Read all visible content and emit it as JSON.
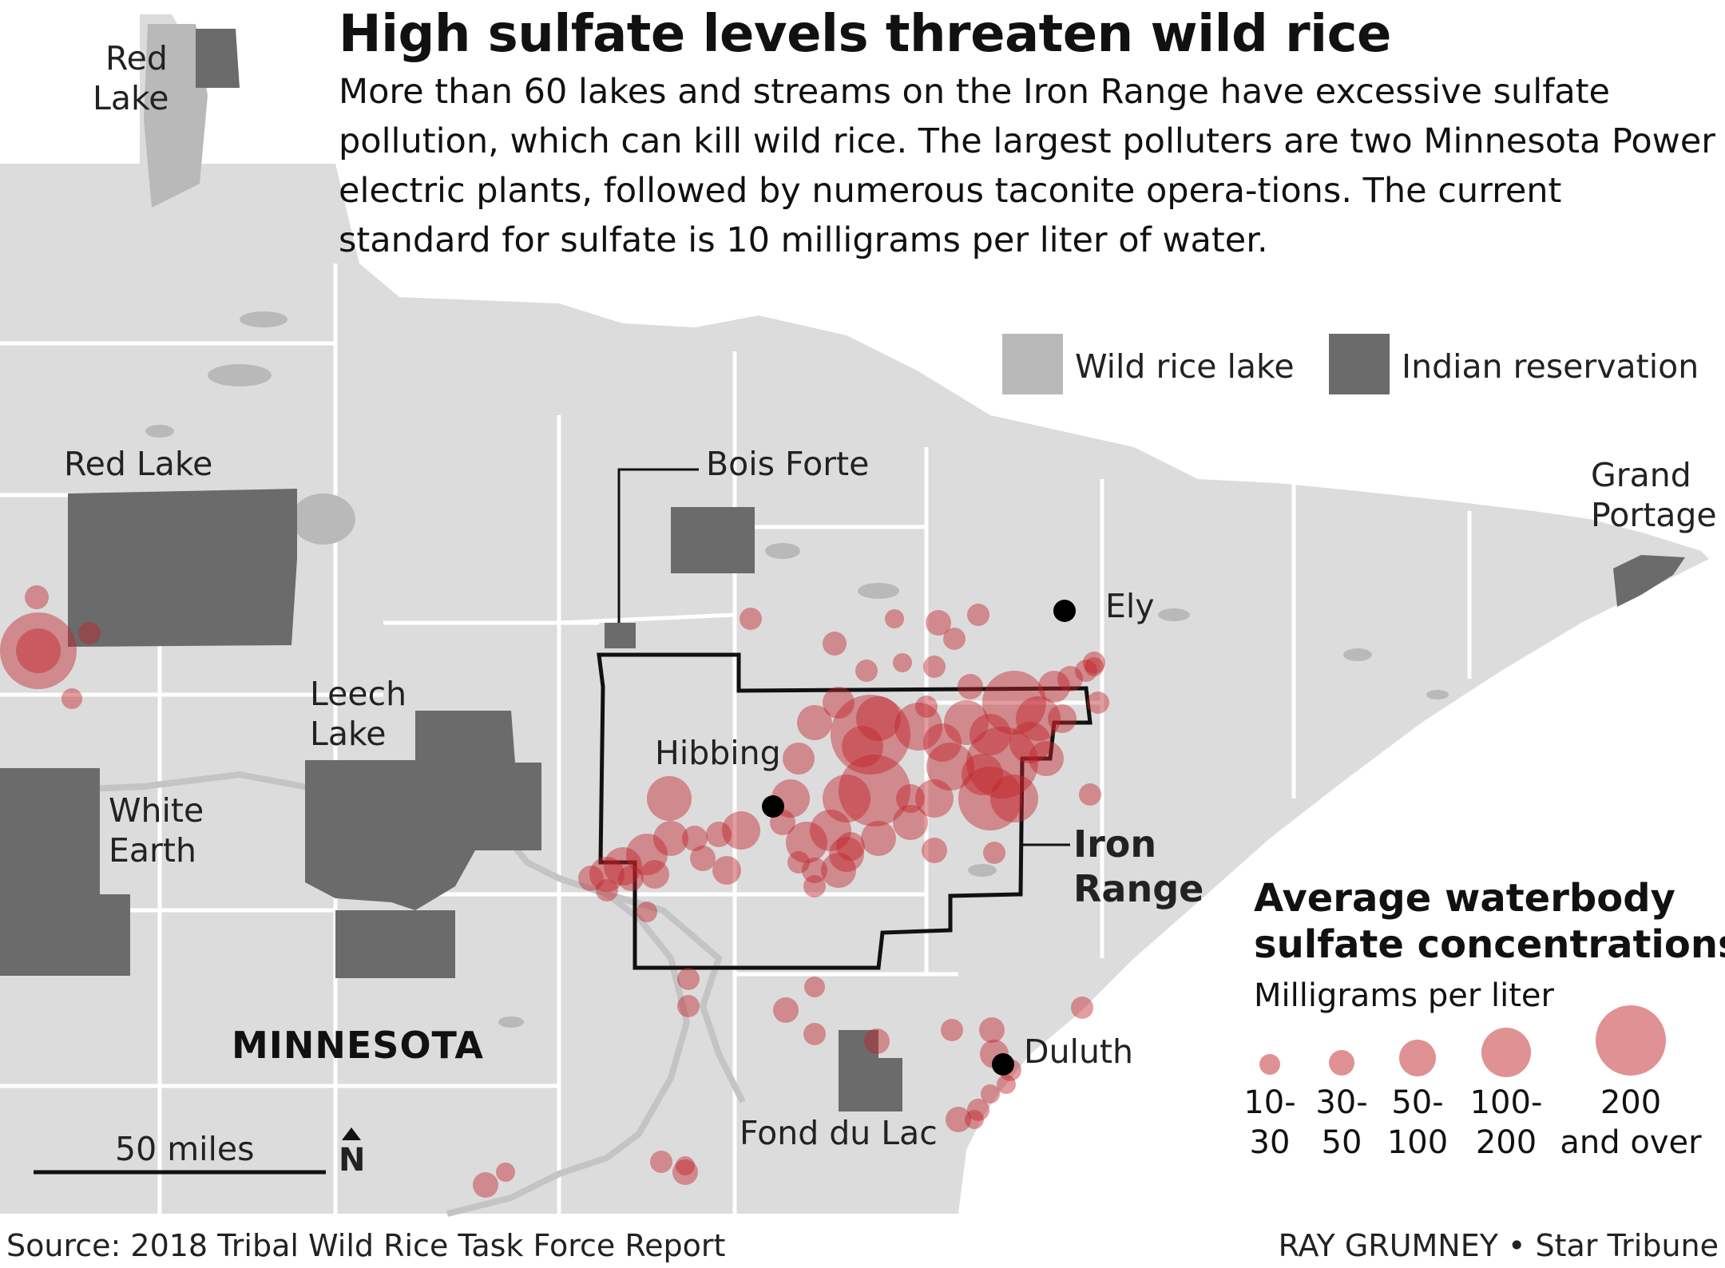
{
  "title": "High sulfate levels threaten wild rice",
  "subtitle": "More than 60 lakes and streams on the Iron Range have excessive sulfate pollution, which can kill wild rice. The largest polluters are two Minnesota Power electric plants, followed by numerous taconite opera-tions. The current standard for sulfate is 10 milligrams per liter of water.",
  "legend_top": {
    "wild_rice_lake": "Wild rice lake",
    "indian_reservation": "Indian reservation"
  },
  "places": {
    "red_lake_top": [
      "Red",
      "Lake"
    ],
    "red_lake": "Red Lake",
    "bois_forte": "Bois Forte",
    "grand_portage": [
      "Grand",
      "Portage"
    ],
    "ely": "Ely",
    "leech_lake": [
      "Leech",
      "Lake"
    ],
    "hibbing": "Hibbing",
    "white_earth": [
      "White",
      "Earth"
    ],
    "iron_range": [
      "Iron",
      "Range"
    ],
    "state": "MINNESOTA",
    "duluth": "Duluth",
    "fond_du_lac": "Fond du Lac"
  },
  "scale": {
    "label": "50 miles",
    "north": "N"
  },
  "legend_sulfate": {
    "title": [
      "Average waterbody",
      "sulfate concentrations"
    ],
    "unit": "Milligrams per liter",
    "categories": [
      {
        "line1": "10-",
        "line2": "30"
      },
      {
        "line1": "30-",
        "line2": "50"
      },
      {
        "line1": "50-",
        "line2": "100"
      },
      {
        "line1": "100-",
        "line2": "200"
      },
      {
        "line1": "200",
        "line2": "and over"
      }
    ]
  },
  "source": "Source: 2018 Tribal Wild Rice Task Force Report",
  "credit": "RAY GRUMNEY • Star Tribune",
  "colors": {
    "land": "#dcdcdc",
    "wild_rice_lake": "#b9b9b9",
    "reservation": "#6b6b6b",
    "sulfate": "#c0242a",
    "lake_superior": "#ffffff"
  }
}
